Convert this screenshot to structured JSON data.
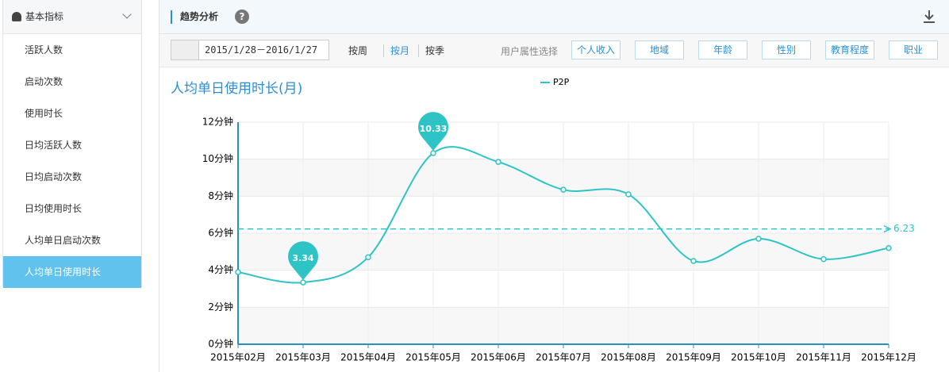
{
  "sidebar": {
    "header": "基本指标",
    "items": [
      "活跃人数",
      "启动次数",
      "使用时长",
      "日均活跃人数",
      "日均启动次数",
      "日均使用时长",
      "人均单日启动次数",
      "人均单日使用时长"
    ]
  },
  "panel": {
    "title": "趋势分析"
  },
  "toolbar": {
    "date_range": "2015/1/28－2016/1/27",
    "periods": [
      "按周",
      "按月",
      "按季"
    ],
    "filter_label": "用户属性选择",
    "filters": [
      "个人收入",
      "地域",
      "年龄",
      "性别",
      "教育程度",
      "职业"
    ]
  },
  "chart_data": {
    "type": "line",
    "title": "人均单日使用时长(月)",
    "categories": [
      "2015年02月",
      "2015年03月",
      "2015年04月",
      "2015年05月",
      "2015年06月",
      "2015年07月",
      "2015年08月",
      "2015年09月",
      "2015年10月",
      "2015年11月",
      "2015年12月"
    ],
    "series": [
      {
        "name": "P2P",
        "color": "#2ec4c6",
        "values": [
          3.9,
          3.34,
          4.7,
          10.33,
          9.85,
          8.35,
          8.1,
          4.5,
          5.7,
          4.6,
          5.2
        ]
      }
    ],
    "ylim": [
      0,
      12
    ],
    "yticks": [
      {
        "value": 0,
        "label": "0分钟"
      },
      {
        "value": 2,
        "label": "2分钟"
      },
      {
        "value": 4,
        "label": "4分钟"
      },
      {
        "value": 6,
        "label": "6分钟"
      },
      {
        "value": 8,
        "label": "8分钟"
      },
      {
        "value": 10,
        "label": "10分钟"
      },
      {
        "value": 12,
        "label": "12分钟"
      }
    ],
    "average": 6.23,
    "mark_points": [
      "min",
      "max"
    ],
    "grid": true,
    "legend": "top"
  }
}
